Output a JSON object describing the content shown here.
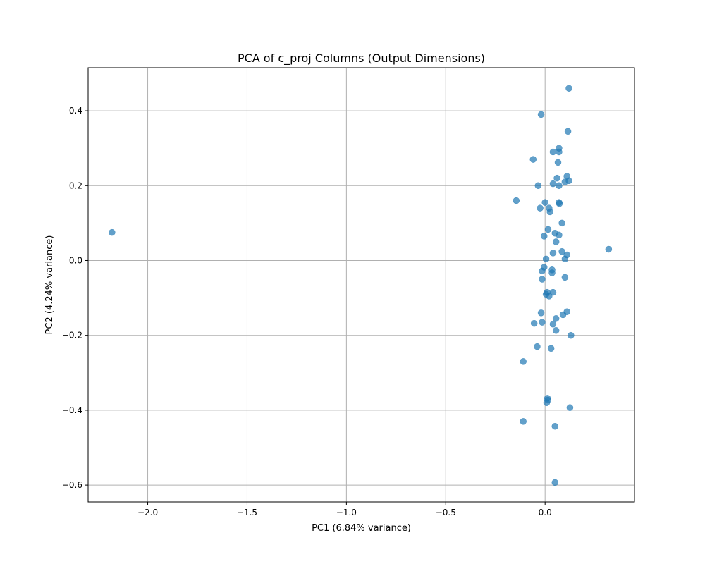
{
  "chart_data": {
    "type": "scatter",
    "title": "PCA of c_proj Columns (Output Dimensions)",
    "xlabel": "PC1 (6.84% variance)",
    "ylabel": "PC2 (4.24% variance)",
    "xlim": [
      -2.3,
      0.45
    ],
    "ylim": [
      -0.645,
      0.515
    ],
    "xticks": [
      -2.0,
      -1.5,
      -1.0,
      -0.5,
      0.0
    ],
    "xtick_labels": [
      "−2.0",
      "−1.5",
      "−1.0",
      "−0.5",
      "0.0"
    ],
    "yticks": [
      -0.6,
      -0.4,
      -0.2,
      0.0,
      0.2,
      0.4
    ],
    "ytick_labels": [
      "−0.6",
      "−0.4",
      "−0.2",
      "0.0",
      "0.2",
      "0.4"
    ],
    "grid": true,
    "marker_color": "#1f77b4",
    "marker_alpha": 0.7,
    "series": [
      {
        "points": [
          [
            -2.18,
            0.075
          ],
          [
            0.32,
            0.03
          ],
          [
            -0.145,
            0.16
          ],
          [
            0.12,
            0.46
          ],
          [
            -0.02,
            0.39
          ],
          [
            0.115,
            0.345
          ],
          [
            0.07,
            0.3
          ],
          [
            0.04,
            0.29
          ],
          [
            0.07,
            0.29
          ],
          [
            -0.06,
            0.27
          ],
          [
            0.065,
            0.262
          ],
          [
            0.11,
            0.225
          ],
          [
            0.06,
            0.22
          ],
          [
            0.12,
            0.213
          ],
          [
            0.1,
            0.21
          ],
          [
            0.04,
            0.205
          ],
          [
            -0.035,
            0.2
          ],
          [
            0.07,
            0.2
          ],
          [
            0.0,
            0.155
          ],
          [
            0.07,
            0.155
          ],
          [
            0.072,
            0.152
          ],
          [
            -0.025,
            0.14
          ],
          [
            0.02,
            0.14
          ],
          [
            0.025,
            0.13
          ],
          [
            0.085,
            0.1
          ],
          [
            0.015,
            0.083
          ],
          [
            0.05,
            0.073
          ],
          [
            0.07,
            0.068
          ],
          [
            -0.005,
            0.065
          ],
          [
            0.055,
            0.05
          ],
          [
            0.085,
            0.024
          ],
          [
            0.04,
            0.02
          ],
          [
            0.11,
            0.015
          ],
          [
            0.1,
            0.004
          ],
          [
            0.005,
            0.004
          ],
          [
            -0.005,
            -0.018
          ],
          [
            0.035,
            -0.025
          ],
          [
            -0.015,
            -0.028
          ],
          [
            0.035,
            -0.033
          ],
          [
            0.1,
            -0.045
          ],
          [
            -0.015,
            -0.05
          ],
          [
            0.04,
            -0.085
          ],
          [
            0.01,
            -0.085
          ],
          [
            0.005,
            -0.09
          ],
          [
            0.02,
            -0.095
          ],
          [
            0.11,
            -0.137
          ],
          [
            -0.02,
            -0.14
          ],
          [
            0.09,
            -0.145
          ],
          [
            0.055,
            -0.155
          ],
          [
            -0.015,
            -0.165
          ],
          [
            -0.055,
            -0.168
          ],
          [
            0.04,
            -0.17
          ],
          [
            0.055,
            -0.187
          ],
          [
            0.13,
            -0.2
          ],
          [
            -0.04,
            -0.23
          ],
          [
            0.03,
            -0.235
          ],
          [
            -0.11,
            -0.27
          ],
          [
            0.012,
            -0.368
          ],
          [
            0.014,
            -0.373
          ],
          [
            0.008,
            -0.38
          ],
          [
            0.125,
            -0.393
          ],
          [
            -0.11,
            -0.43
          ],
          [
            0.05,
            -0.443
          ],
          [
            0.05,
            -0.593
          ]
        ]
      }
    ]
  }
}
